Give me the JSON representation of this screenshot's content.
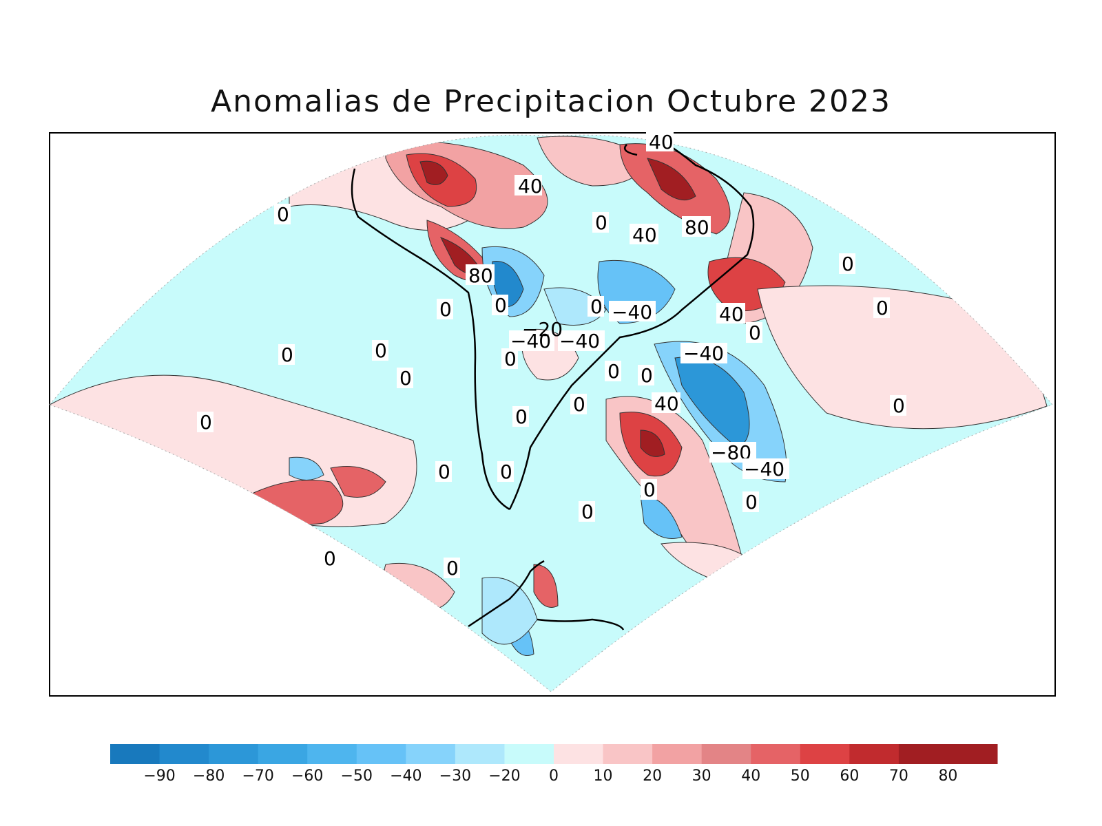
{
  "title": "Anomalias de Precipitacion Octubre 2023",
  "colorbar": {
    "segments": [
      {
        "color": "#1879bd"
      },
      {
        "color": "#2289cd"
      },
      {
        "color": "#2c97d8"
      },
      {
        "color": "#3aa6e3"
      },
      {
        "color": "#4eb5ee"
      },
      {
        "color": "#66c2f7"
      },
      {
        "color": "#86d3fb"
      },
      {
        "color": "#aee8fc"
      },
      {
        "color": "#c8fbfb"
      },
      {
        "color": "#fde2e3"
      },
      {
        "color": "#f9c5c6"
      },
      {
        "color": "#f2a2a3"
      },
      {
        "color": "#e38486"
      },
      {
        "color": "#e56366"
      },
      {
        "color": "#dd4244"
      },
      {
        "color": "#c12b2e"
      },
      {
        "color": "#a11e22"
      },
      {
        "color": "#a11e22"
      }
    ],
    "ticks": [
      "−90",
      "−80",
      "−70",
      "−60",
      "−50",
      "−40",
      "−30",
      "−20",
      "0",
      "10",
      "20",
      "30",
      "40",
      "50",
      "60",
      "70",
      "80"
    ]
  },
  "map": {
    "ocean_background": "#c8fbfb",
    "contour_labels": [
      "40",
      "40",
      "0",
      "40",
      "80",
      "0",
      "80",
      "0",
      "0",
      "0",
      "−40",
      "40",
      "0",
      "−40",
      "−40",
      "−20",
      "0",
      "0",
      "0",
      "0",
      "−40",
      "0",
      "0",
      "0",
      "0",
      "40",
      "0",
      "−80",
      "−40",
      "0",
      "0",
      "0",
      "0",
      "0",
      "0",
      "0",
      "0",
      "0",
      "0"
    ]
  }
}
